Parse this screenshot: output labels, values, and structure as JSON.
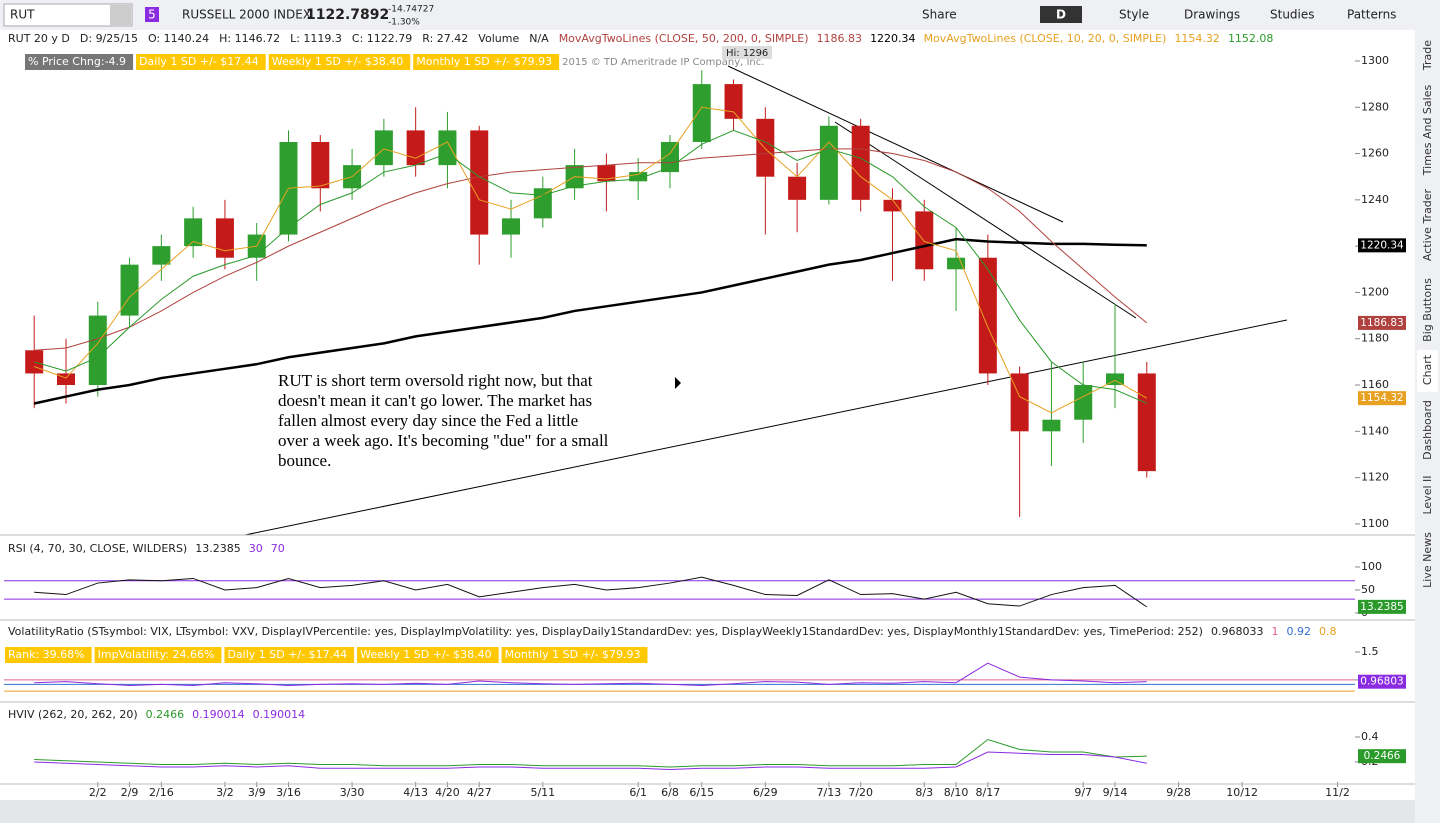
{
  "toolbar": {
    "symbol": "RUT",
    "badge": "5",
    "name": "RUSSELL 2000 INDEX",
    "last": "1122.7892",
    "change": "-14.74727",
    "change_pct": "-1.30%",
    "share": "Share",
    "period": "D",
    "style": "Style",
    "drawings": "Drawings",
    "studies": "Studies",
    "patterns": "Patterns"
  },
  "header": {
    "items": [
      "RUT 20 y D",
      "D: 9/25/15",
      "O: 1140.24",
      "H: 1146.72",
      "L: 1119.3",
      "C: 1122.79",
      "R: 27.42",
      "Volume",
      "N/A"
    ],
    "ma1": "MovAvgTwoLines (CLOSE, 50, 200, 0, SIMPLE)",
    "ma2": "MovAvgTwoLines (CLOSE, 10, 20, 0, SIMPLE)",
    "bubbles": [
      "% Price Chng:-4.9",
      "Daily 1 SD +/- $17.44",
      "Weekly 1 SD +/- $38.40",
      "Monthly 1 SD +/- $79.93"
    ],
    "copyright": "2015 © TD Ameritrade IP Company, Inc.",
    "hi": "Hi: 1296"
  },
  "annotation": [
    "RUT is short term oversold right now, but that",
    "doesn't mean it can't go lower.  The market has",
    "fallen almost every day since the Fed a little",
    "over a week ago.  It's becoming \"due\" for a small",
    "bounce."
  ],
  "chart_data": [
    {
      "type": "candlestick",
      "xlim": [
        -2.95,
        39.55
      ],
      "ylim": [
        1095.2,
        1305.6
      ],
      "yticks": [
        1100,
        1120,
        1140,
        1160,
        1180,
        1200,
        1220,
        1240,
        1260,
        1280,
        1300
      ],
      "xticks": [
        {
          "value": 0,
          "label": "2/2"
        },
        {
          "value": 1,
          "label": "2/9"
        },
        {
          "value": 2,
          "label": "2/16"
        },
        {
          "value": 4,
          "label": "3/2"
        },
        {
          "value": 5,
          "label": "3/9"
        },
        {
          "value": 6,
          "label": "3/16"
        },
        {
          "value": 8,
          "label": "3/30"
        },
        {
          "value": 10,
          "label": "4/13"
        },
        {
          "value": 11,
          "label": "4/20"
        },
        {
          "value": 12,
          "label": "4/27"
        },
        {
          "value": 14,
          "label": "5/11"
        },
        {
          "value": 17,
          "label": "6/1"
        },
        {
          "value": 18,
          "label": "6/8"
        },
        {
          "value": 19,
          "label": "6/15"
        },
        {
          "value": 21,
          "label": "6/29"
        },
        {
          "value": 23,
          "label": "7/13"
        },
        {
          "value": 24,
          "label": "7/20"
        },
        {
          "value": 26,
          "label": "8/3"
        },
        {
          "value": 27,
          "label": "8/10"
        },
        {
          "value": 28,
          "label": "8/17"
        },
        {
          "value": 31,
          "label": "9/7"
        },
        {
          "value": 32,
          "label": "9/14"
        },
        {
          "value": 34,
          "label": "9/28"
        },
        {
          "value": 36,
          "label": "10/12"
        },
        {
          "value": 39,
          "label": "11/2"
        }
      ],
      "x": [
        -2,
        -1,
        0,
        1,
        2,
        3,
        4,
        5,
        6,
        7,
        8,
        9,
        10,
        11,
        12,
        13,
        14,
        15,
        16,
        17,
        18,
        19,
        20,
        21,
        22,
        23,
        24,
        25,
        26,
        27,
        28,
        29,
        30,
        31,
        32,
        33
      ],
      "open": [
        1175,
        1165,
        1160,
        1190,
        1212,
        1220,
        1232,
        1215,
        1225,
        1265,
        1245,
        1255,
        1270,
        1255,
        1270,
        1225,
        1232,
        1245,
        1255,
        1248,
        1252,
        1265,
        1290,
        1275,
        1250,
        1240,
        1272,
        1240,
        1235,
        1210,
        1215,
        1165,
        1140,
        1145,
        1160,
        1165
      ],
      "high": [
        1190,
        1180,
        1196,
        1215,
        1225,
        1237,
        1240,
        1230,
        1270,
        1268,
        1262,
        1275,
        1280,
        1278,
        1272,
        1240,
        1250,
        1262,
        1260,
        1258,
        1268,
        1296,
        1292,
        1280,
        1256,
        1276,
        1275,
        1245,
        1240,
        1228,
        1225,
        1168,
        1170,
        1170,
        1195,
        1170
      ],
      "low": [
        1150,
        1152,
        1155,
        1185,
        1205,
        1215,
        1210,
        1205,
        1222,
        1235,
        1240,
        1250,
        1250,
        1245,
        1212,
        1215,
        1228,
        1240,
        1235,
        1240,
        1245,
        1262,
        1270,
        1225,
        1226,
        1238,
        1235,
        1205,
        1205,
        1192,
        1160,
        1103,
        1125,
        1135,
        1150,
        1120
      ],
      "close": [
        1165,
        1160,
        1190,
        1212,
        1220,
        1232,
        1215,
        1225,
        1265,
        1245,
        1255,
        1270,
        1255,
        1270,
        1225,
        1232,
        1245,
        1255,
        1248,
        1252,
        1265,
        1290,
        1275,
        1250,
        1240,
        1272,
        1240,
        1235,
        1210,
        1215,
        1165,
        1140,
        1145,
        1160,
        1165,
        1122.79
      ],
      "up_color": "#2e9e2e",
      "down_color": "#c41a1a",
      "series": [
        {
          "color": "#000000",
          "values": [
            1152,
            1155,
            1158,
            1160,
            1163,
            1165,
            1167,
            1169,
            1172,
            1174,
            1176,
            1178,
            1181,
            1183,
            1185,
            1187,
            1189,
            1192,
            1194,
            1196,
            1198,
            1200,
            1203,
            1206,
            1209,
            1212,
            1214,
            1217,
            1220,
            1223,
            1222,
            1221.5,
            1221,
            1221,
            1220.6,
            1220.34
          ]
        },
        {
          "color": "#b0413e",
          "values": [
            1175,
            1176,
            1180,
            1185,
            1192,
            1200,
            1207,
            1213,
            1220,
            1226,
            1232,
            1238,
            1243,
            1247,
            1250,
            1252,
            1253,
            1254,
            1255,
            1256,
            1256,
            1258,
            1259,
            1260,
            1261,
            1262,
            1262,
            1260,
            1257,
            1252,
            1245,
            1235,
            1222,
            1210,
            1198,
            1186.83
          ]
        },
        {
          "color": "#e8a020",
          "values": [
            1168,
            1163,
            1178,
            1198,
            1210,
            1222,
            1218,
            1220,
            1245,
            1246,
            1250,
            1262,
            1258,
            1265,
            1240,
            1236,
            1242,
            1250,
            1249,
            1251,
            1260,
            1280,
            1278,
            1262,
            1250,
            1265,
            1250,
            1240,
            1222,
            1218,
            1185,
            1155,
            1148,
            1155,
            1162,
            1154.32
          ]
        },
        {
          "color": "#2a9a2a",
          "values": [
            1170,
            1166,
            1172,
            1185,
            1197,
            1207,
            1212,
            1216,
            1228,
            1238,
            1243,
            1252,
            1255,
            1260,
            1250,
            1243,
            1242,
            1246,
            1248,
            1249,
            1254,
            1264,
            1270,
            1265,
            1257,
            1262,
            1258,
            1250,
            1237,
            1228,
            1210,
            1188,
            1170,
            1160,
            1158,
            1152.08
          ]
        }
      ]
    },
    {
      "type": "line",
      "title": "RSI (4, 70, 30, CLOSE, WILDERS)",
      "ylim": [
        -11,
        119.5
      ],
      "yticks": [
        0,
        50,
        100
      ],
      "levels": [
        {
          "value": 30,
          "color": "#8a2be2"
        },
        {
          "value": 70,
          "color": "#8a2be2"
        }
      ],
      "series": [
        {
          "color": "#111111",
          "tag_color": "#2a9a2a",
          "values": [
            45,
            40,
            65,
            72,
            70,
            75,
            50,
            55,
            75,
            55,
            60,
            70,
            50,
            62,
            35,
            45,
            55,
            62,
            50,
            55,
            65,
            78,
            60,
            40,
            38,
            72,
            40,
            42,
            30,
            45,
            20,
            15,
            40,
            55,
            60,
            13.2385
          ]
        }
      ]
    },
    {
      "type": "line",
      "title": "VolatilityRatio (STsymbol: VIX, LTsymbol: VXV, DisplayIVPercentile: yes, DisplayImpVolatility: yes, DisplayDaily1StandardDev: yes, DisplayWeekly1StandardDev: yes, DisplayMonthly1StandardDev: yes, TimePeriod: 252)",
      "ylim": [
        0.64,
        1.625
      ],
      "yticks": [
        1,
        1.5
      ],
      "levels": [
        {
          "value": 1,
          "color": "#e06090"
        },
        {
          "value": 0.92,
          "color": "#3070d0"
        },
        {
          "value": 0.8,
          "color": "#e8a020"
        }
      ],
      "bubbles": [
        "Rank: 39.68%",
        "ImpVolatility: 24.66%",
        "Daily 1 SD +/- $17.44",
        "Weekly 1 SD +/- $38.40",
        "Monthly 1 SD +/- $79.93"
      ],
      "series": [
        {
          "color": "#8a2be2",
          "tag_color": "#8a2be2",
          "tag_label": "0.96803",
          "values": [
            0.95,
            0.97,
            0.93,
            0.9,
            0.92,
            0.9,
            0.95,
            0.93,
            0.9,
            0.92,
            0.93,
            0.92,
            0.94,
            0.92,
            0.98,
            0.95,
            0.93,
            0.92,
            0.93,
            0.94,
            0.92,
            0.9,
            0.93,
            0.97,
            0.96,
            0.92,
            0.95,
            0.94,
            0.97,
            0.95,
            1.3,
            1.05,
            1.0,
            0.98,
            0.95,
            0.968033
          ]
        }
      ]
    },
    {
      "type": "line",
      "title": "HVIV (262, 20, 262, 20)",
      "ylim": [
        0.04,
        0.472
      ],
      "yticks": [
        0.2,
        0.4
      ],
      "levels": [],
      "series": [
        {
          "color": "#2a9a2a",
          "tag_color": "#2a9a2a",
          "values": [
            0.22,
            0.21,
            0.2,
            0.19,
            0.18,
            0.18,
            0.19,
            0.18,
            0.19,
            0.18,
            0.18,
            0.17,
            0.17,
            0.17,
            0.18,
            0.18,
            0.17,
            0.17,
            0.17,
            0.17,
            0.16,
            0.17,
            0.17,
            0.18,
            0.18,
            0.17,
            0.17,
            0.17,
            0.18,
            0.18,
            0.38,
            0.3,
            0.28,
            0.28,
            0.24,
            0.2466
          ]
        },
        {
          "color": "#8a2be2",
          "values": [
            0.2,
            0.19,
            0.18,
            0.17,
            0.16,
            0.16,
            0.17,
            0.16,
            0.17,
            0.15,
            0.15,
            0.15,
            0.15,
            0.15,
            0.16,
            0.16,
            0.15,
            0.15,
            0.15,
            0.15,
            0.14,
            0.15,
            0.15,
            0.16,
            0.16,
            0.15,
            0.15,
            0.15,
            0.15,
            0.16,
            0.28,
            0.27,
            0.26,
            0.26,
            0.24,
            0.190014
          ]
        }
      ]
    }
  ],
  "side_tabs": [
    "Trade",
    "Times And Sales",
    "Active Trader",
    "Big Buttons",
    "Chart",
    "Dashboard",
    "Level II",
    "Live News"
  ]
}
